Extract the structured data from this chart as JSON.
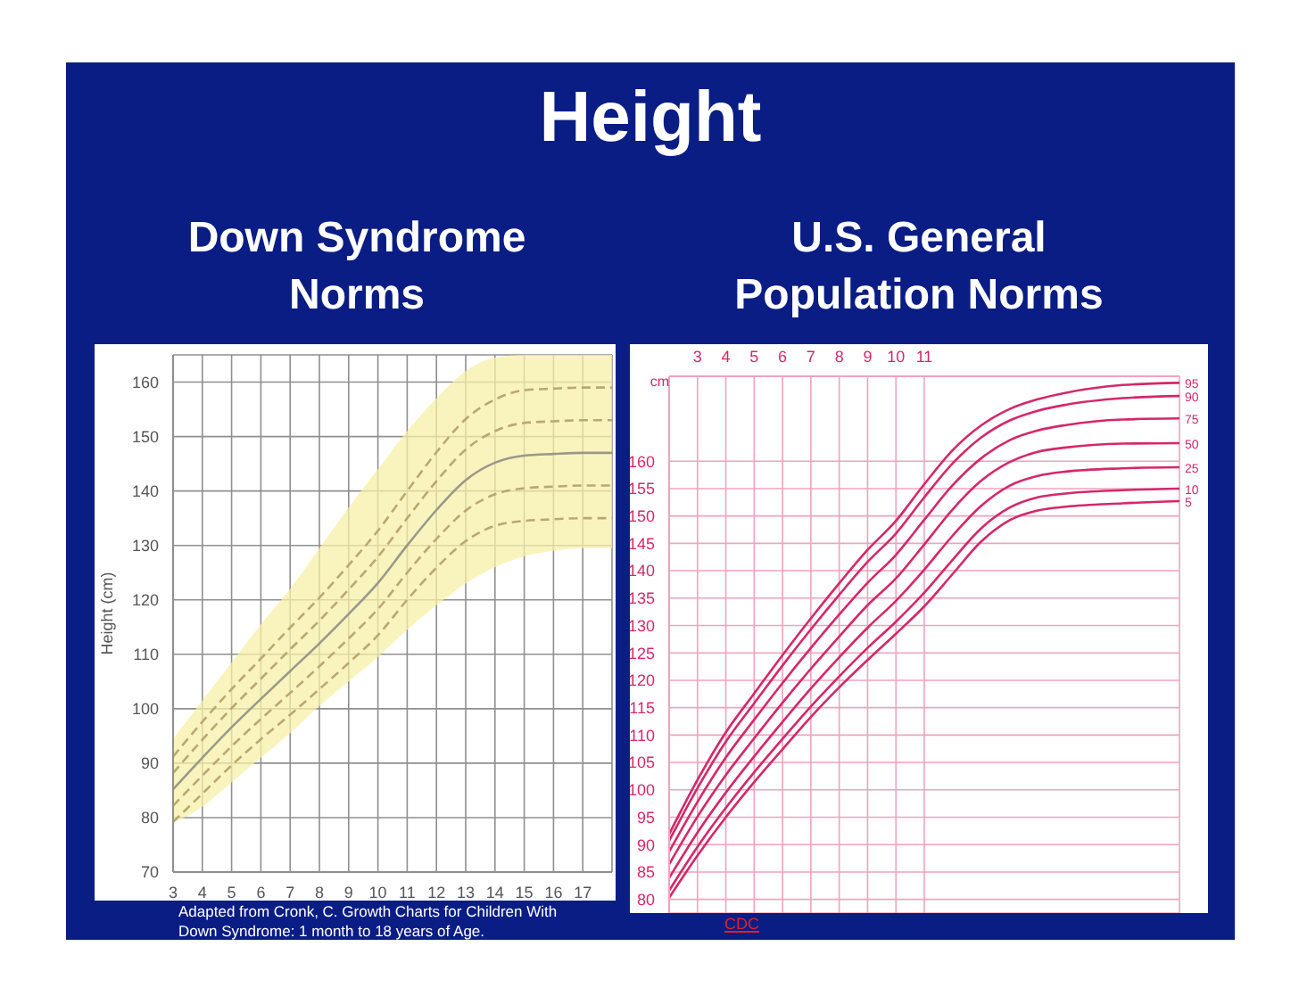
{
  "chart_data": [
    {
      "type": "line",
      "title": "Down Syndrome Norms",
      "ylabel": "Height (cm)",
      "annotations": [
        "Height",
        "Adapted from Cronk, C. Growth Charts for Children With Down Syndrome: 1 month to 18 years of Age."
      ],
      "x": [
        3,
        4,
        5,
        6,
        7,
        8,
        9,
        10,
        11,
        12,
        13,
        14,
        15,
        16,
        17,
        18
      ],
      "xlim": [
        3,
        18
      ],
      "xticks": [
        3,
        4,
        5,
        6,
        7,
        8,
        9,
        10,
        11,
        12,
        13,
        14,
        15,
        16,
        17
      ],
      "ylim": [
        70,
        165
      ],
      "yticks": [
        70,
        80,
        90,
        100,
        110,
        120,
        130,
        140,
        150,
        160
      ],
      "grid": true,
      "marker": "none",
      "series": [
        {
          "color": "#b8a970",
          "line_style": "dashed",
          "values": [
            91.2,
            97.6,
            103.6,
            109.2,
            114.9,
            120.4,
            126.4,
            132.7,
            140,
            147.1,
            153.2,
            156.8,
            158.5,
            158.8,
            159,
            159
          ]
        },
        {
          "color": "#b8a970",
          "line_style": "dashed",
          "values": [
            88.2,
            94.3,
            100.1,
            105.5,
            110.9,
            116.2,
            121.9,
            127.9,
            135,
            141.8,
            147.6,
            151,
            152.5,
            152.8,
            153,
            153
          ]
        },
        {
          "color": "#9c9888",
          "line_style": "solid",
          "values": [
            85.2,
            91,
            96.6,
            101.8,
            106.9,
            112,
            117.4,
            123.1,
            130,
            136.5,
            142,
            145.2,
            146.5,
            146.8,
            147,
            147
          ],
          "lower": [
            79,
            82,
            86.5,
            91,
            95.5,
            100.5,
            105,
            109.5,
            114.5,
            119,
            123,
            126,
            128,
            129,
            129.5,
            129.5
          ],
          "upper": [
            94.5,
            101.5,
            108.5,
            115.5,
            122,
            129.5,
            137,
            144,
            151,
            157,
            162,
            164.5,
            165,
            165,
            165,
            165
          ]
        },
        {
          "color": "#b8a970",
          "line_style": "dashed",
          "values": [
            82.2,
            87.7,
            93.1,
            98.1,
            102.9,
            107.8,
            112.9,
            118.3,
            125,
            131.2,
            136.4,
            139.4,
            140.5,
            140.8,
            141,
            141
          ]
        },
        {
          "color": "#b8a970",
          "line_style": "dashed",
          "values": [
            79.2,
            84.4,
            89.6,
            94.4,
            98.9,
            103.6,
            108.4,
            113.5,
            120,
            125.9,
            130.8,
            133.6,
            134.5,
            134.8,
            135,
            135
          ]
        }
      ]
    },
    {
      "type": "line",
      "title": "U.S. General Population Norms",
      "ylabel": "cm",
      "annotations": [
        "CDC"
      ],
      "x": [
        2,
        3,
        4,
        5,
        6,
        7,
        8,
        9,
        10,
        11,
        12,
        13,
        14,
        15,
        16,
        18,
        20
      ],
      "xlim": [
        2,
        20
      ],
      "xticks": [
        3,
        4,
        5,
        6,
        7,
        8,
        9,
        10,
        11
      ],
      "ylim": [
        77.5,
        175.5
      ],
      "yticks": [
        80,
        85,
        90,
        95,
        100,
        105,
        110,
        115,
        120,
        125,
        130,
        135,
        140,
        145,
        150,
        155,
        160
      ],
      "grid": true,
      "marker": "none",
      "line_style": "solid",
      "series": [
        {
          "name": "95",
          "color": "#d4286a",
          "values": [
            91.9,
            101.8,
            110.5,
            117.6,
            124.6,
            131.3,
            137.7,
            143.8,
            149.1,
            155.8,
            162,
            166.5,
            169.5,
            171.3,
            172.5,
            173.9,
            174.3
          ]
        },
        {
          "name": "90",
          "color": "#d4286a",
          "values": [
            90.7,
            100.3,
            108.8,
            115.8,
            122.7,
            129.3,
            135.6,
            141.6,
            146.8,
            153.4,
            159.6,
            164.3,
            167.4,
            169.2,
            170.3,
            171.5,
            171.9
          ]
        },
        {
          "name": "75",
          "color": "#d4286a",
          "values": [
            88.7,
            97.8,
            105.9,
            112.8,
            119.5,
            125.9,
            132,
            137.8,
            142.9,
            149.3,
            155.6,
            160.5,
            163.8,
            165.6,
            166.6,
            167.6,
            167.8
          ]
        },
        {
          "name": "50",
          "color": "#d4286a",
          "values": [
            86.4,
            95.1,
            102.7,
            109.4,
            115.9,
            122.1,
            128,
            133.7,
            138.6,
            144.8,
            151.2,
            156.4,
            159.8,
            161.7,
            162.5,
            163.2,
            163.3
          ]
        },
        {
          "name": "25",
          "color": "#d4286a",
          "values": [
            83.9,
            92.2,
            99.5,
            106.1,
            112.4,
            118.5,
            124.2,
            129.6,
            134.5,
            140.2,
            146.4,
            151.8,
            155.5,
            157.3,
            158.1,
            158.7,
            158.9
          ]
        },
        {
          "name": "10",
          "color": "#d4286a",
          "values": [
            81.6,
            89.6,
            96.7,
            103.2,
            109.3,
            115.2,
            120.7,
            125.9,
            130.7,
            136,
            142,
            147.7,
            151.5,
            153.4,
            154.1,
            154.7,
            155
          ]
        },
        {
          "name": "5",
          "color": "#d4286a",
          "values": [
            80.3,
            88,
            95,
            101.4,
            107.4,
            113.3,
            118.7,
            123.7,
            128.5,
            133.5,
            139.4,
            145.3,
            149.2,
            151,
            151.7,
            152.3,
            152.7
          ]
        }
      ]
    }
  ]
}
